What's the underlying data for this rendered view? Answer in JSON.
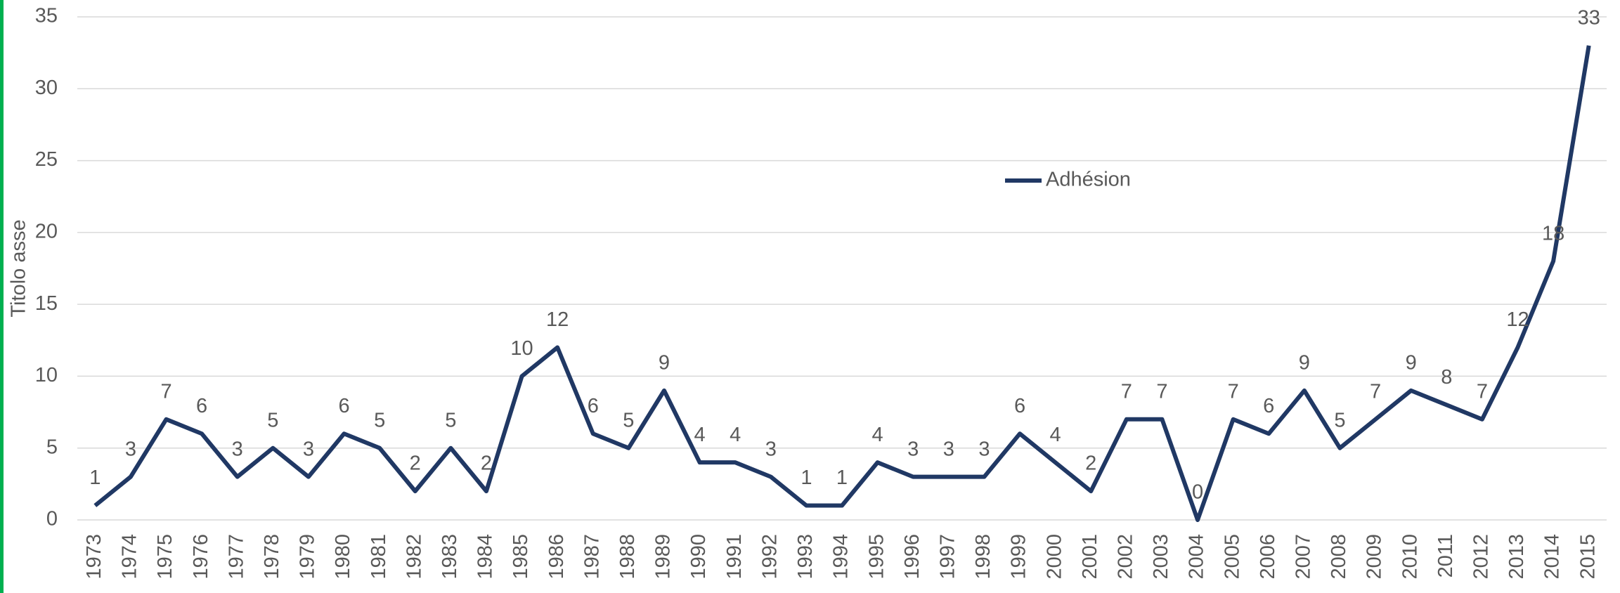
{
  "chart_data": {
    "type": "line",
    "y_label": "Titolo asse",
    "categories": [
      "1973",
      "1974",
      "1975",
      "1976",
      "1977",
      "1978",
      "1979",
      "1980",
      "1981",
      "1982",
      "1983",
      "1984",
      "1985",
      "1986",
      "1987",
      "1988",
      "1989",
      "1990",
      "1991",
      "1992",
      "1993",
      "1994",
      "1995",
      "1996",
      "1997",
      "1998",
      "1999",
      "2000",
      "2001",
      "2002",
      "2003",
      "2004",
      "2005",
      "2006",
      "2007",
      "2008",
      "2009",
      "2010",
      "2011",
      "2012",
      "2013",
      "2014",
      "2015"
    ],
    "series": [
      {
        "name": "Adhésion",
        "color": "#203864",
        "values": [
          1,
          3,
          7,
          6,
          3,
          5,
          3,
          6,
          5,
          2,
          5,
          2,
          10,
          12,
          6,
          5,
          9,
          4,
          4,
          3,
          1,
          1,
          4,
          3,
          3,
          3,
          6,
          4,
          2,
          7,
          7,
          0,
          7,
          6,
          9,
          5,
          7,
          9,
          8,
          7,
          12,
          18,
          33
        ]
      }
    ],
    "ylim": [
      0,
      35
    ],
    "yticks": [
      0,
      5,
      10,
      15,
      20,
      25,
      30,
      35
    ],
    "grid": true,
    "legend": "center"
  }
}
